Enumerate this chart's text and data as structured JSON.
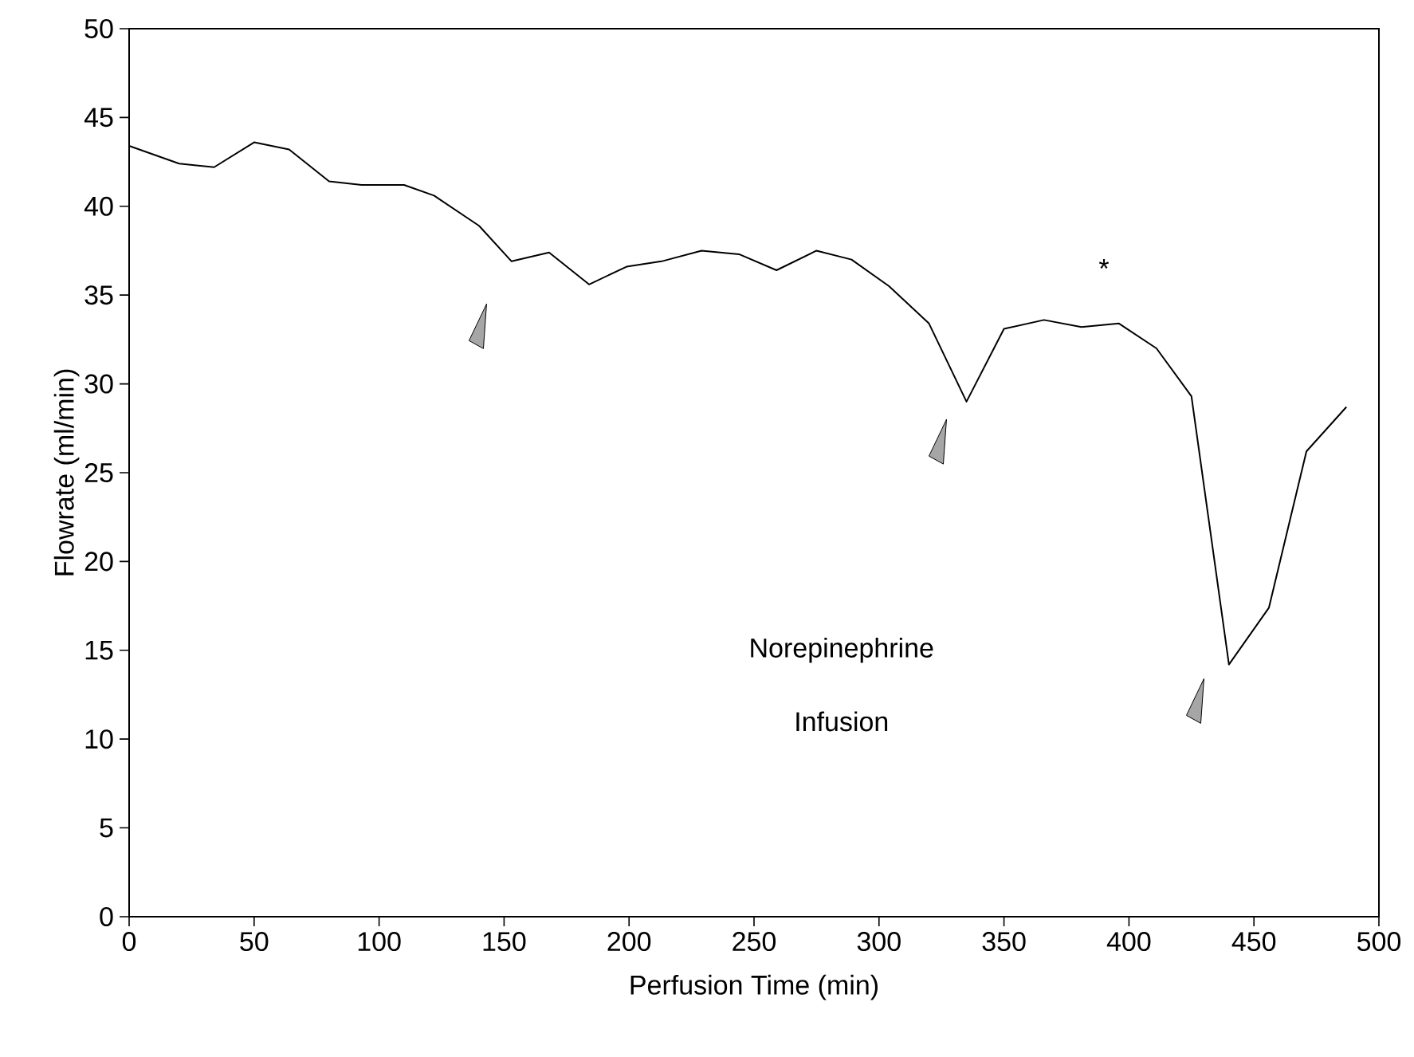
{
  "chart_data": {
    "type": "line",
    "xlabel": "Perfusion Time  (min)",
    "ylabel": "Flowrate  (ml/min)",
    "x": [
      0,
      20,
      34,
      50,
      64,
      80,
      93,
      110,
      122,
      140,
      153,
      168,
      184,
      199,
      213,
      229,
      244,
      259,
      275,
      289,
      304,
      320,
      335,
      350,
      366,
      381,
      396,
      411,
      425,
      440,
      456,
      471,
      487
    ],
    "series": [
      {
        "color": "#000000",
        "values": [
          43.4,
          42.4,
          42.2,
          43.6,
          43.2,
          41.4,
          41.2,
          41.2,
          40.6,
          38.9,
          36.9,
          37.4,
          35.6,
          36.6,
          36.9,
          37.5,
          37.3,
          36.4,
          37.5,
          37.0,
          35.5,
          33.4,
          29.0,
          33.1,
          33.6,
          33.2,
          33.4,
          32.0,
          29.3,
          14.2,
          17.4,
          26.2,
          28.7
        ]
      }
    ],
    "xlim": [
      0,
      500
    ],
    "ylim": [
      0,
      50
    ],
    "xticks": [
      0,
      50,
      100,
      150,
      200,
      250,
      300,
      350,
      400,
      450,
      500
    ],
    "yticks": [
      0,
      5,
      10,
      15,
      20,
      25,
      30,
      35,
      40,
      45,
      50
    ],
    "annotations": [
      "Norepinephrine",
      "Infusion",
      "*"
    ],
    "grid": false,
    "marker": "none",
    "line_style": "solid"
  }
}
